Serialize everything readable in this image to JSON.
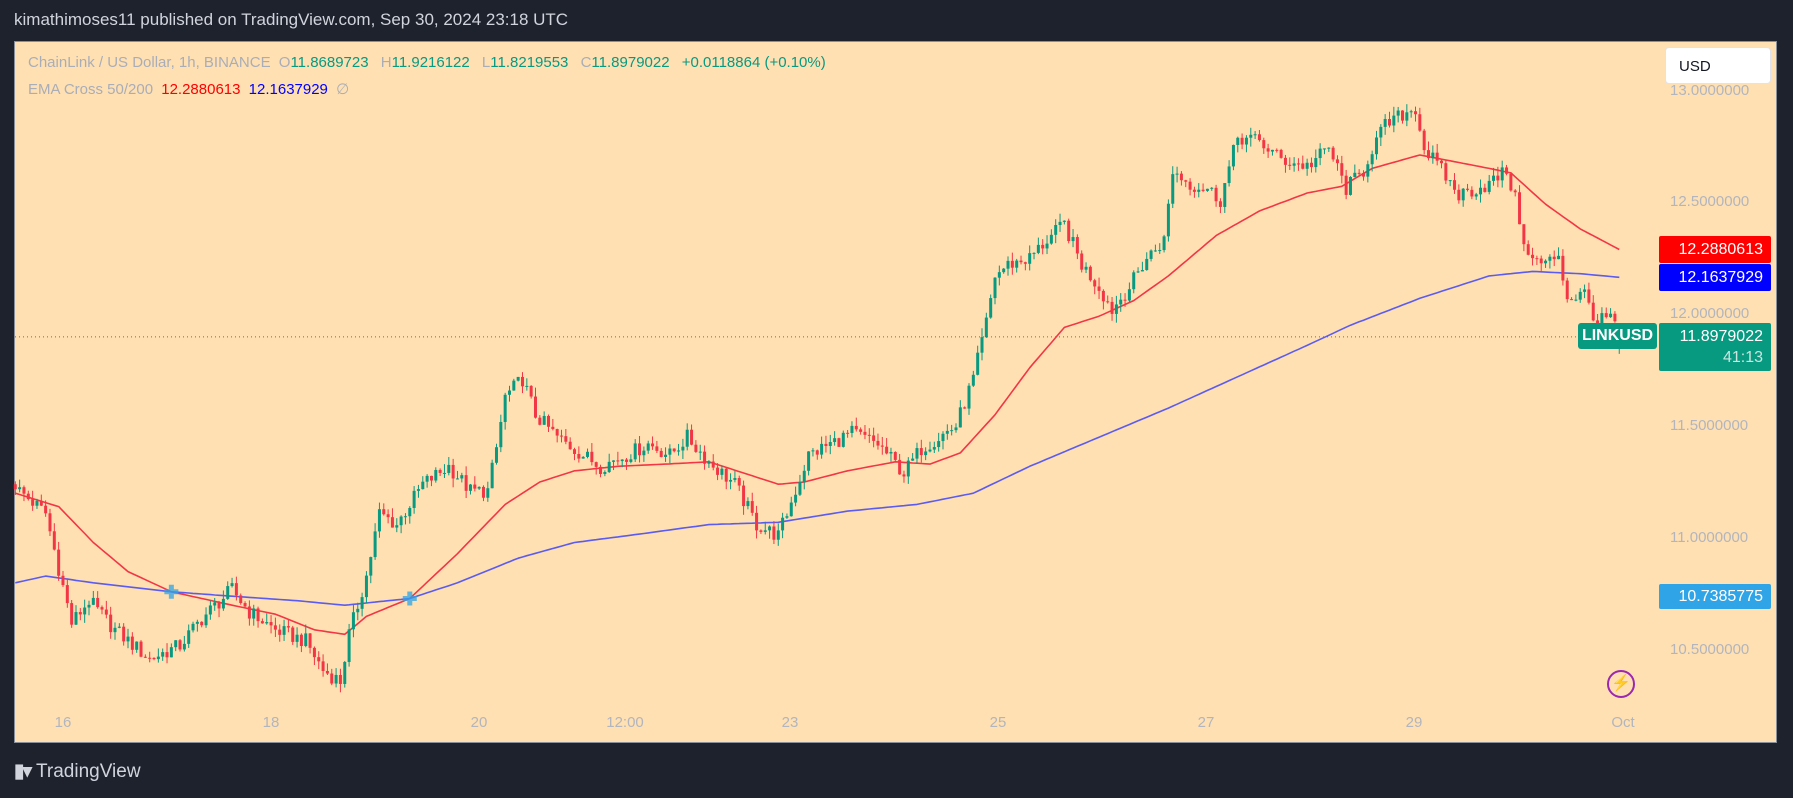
{
  "header": {
    "title": "kimathimoses11 published on TradingView.com, Sep 30, 2024 23:18 UTC"
  },
  "legend": {
    "symbol": "ChainLink / US Dollar, 1h, BINANCE",
    "o_label": "O",
    "o": "11.8689723",
    "h_label": "H",
    "h": "11.9216122",
    "l_label": "L",
    "l": "11.8219553",
    "c_label": "C",
    "c": "11.8979022",
    "change": "+0.0118864 (+0.10%)",
    "indicator": "EMA Cross 50/200",
    "ema50": "12.2880613",
    "ema200": "12.1637929",
    "ema_extra": "∅"
  },
  "currency_button": "USD",
  "footer": {
    "brand": "TradingView",
    "logo_mark": "17"
  },
  "icons": {
    "alert": "lightning-icon"
  },
  "colors": {
    "up": "#089981",
    "down": "#f23645",
    "ema50": "#ff0000",
    "ema200": "#0000ff",
    "cross": "#2fa4e7",
    "background": "#ffe0b2"
  },
  "price_labels": {
    "ema50": "12.2880613",
    "ema200": "12.1637929",
    "symbol_tag": "LINKUSD",
    "last": "11.8979022",
    "countdown": "41:13",
    "cross": "10.7385775"
  },
  "chart_data": {
    "type": "candlestick",
    "interval": "1h",
    "y_ticks": [
      "13.0000000",
      "12.5000000",
      "12.0000000",
      "11.5000000",
      "11.0000000",
      "10.5000000"
    ],
    "x_ticks": [
      "16",
      "18",
      "20",
      "12:00",
      "23",
      "25",
      "27",
      "29",
      "Oct"
    ],
    "ylim": [
      10.25,
      13.12
    ],
    "last_candle": {
      "o": 11.8689723,
      "h": 11.9216122,
      "l": 11.8219553,
      "c": 11.8979022
    },
    "close_path": [
      [
        "09-15 13:00",
        11.24
      ],
      [
        "09-15 14:00",
        11.21
      ],
      [
        "09-15 20:00",
        11.11
      ],
      [
        "09-16 02:00",
        10.62
      ],
      [
        "09-16 06:00",
        10.72
      ],
      [
        "09-16 12:00",
        10.59
      ],
      [
        "09-16 20:00",
        10.46
      ],
      [
        "09-17 03:00",
        10.52
      ],
      [
        "09-17 08:00",
        10.64
      ],
      [
        "09-17 15:00",
        10.77
      ],
      [
        "09-17 19:00",
        10.67
      ],
      [
        "09-18 01:00",
        10.59
      ],
      [
        "09-18 08:00",
        10.54
      ],
      [
        "09-18 12:00",
        10.41
      ],
      [
        "09-18 16:00",
        10.36
      ],
      [
        "09-18 18:00",
        10.57
      ],
      [
        "09-18 22:00",
        10.83
      ],
      [
        "09-19 01:00",
        11.11
      ],
      [
        "09-19 05:00",
        11.06
      ],
      [
        "09-19 11:00",
        11.24
      ],
      [
        "09-19 17:00",
        11.32
      ],
      [
        "09-19 22:00",
        11.21
      ],
      [
        "09-20 02:00",
        11.21
      ],
      [
        "09-20 04:00",
        11.4
      ],
      [
        "09-20 06:00",
        11.63
      ],
      [
        "09-20 10:00",
        11.71
      ],
      [
        "09-20 13:00",
        11.55
      ],
      [
        "09-20 18:00",
        11.45
      ],
      [
        "09-21 00:00",
        11.37
      ],
      [
        "09-21 04:00",
        11.32
      ],
      [
        "09-21 10:00",
        11.37
      ],
      [
        "09-21 15:00",
        11.42
      ],
      [
        "09-21 20:00",
        11.37
      ],
      [
        "09-22 00:00",
        11.45
      ],
      [
        "09-22 05:00",
        11.34
      ],
      [
        "09-22 11:00",
        11.24
      ],
      [
        "09-22 16:00",
        11.06
      ],
      [
        "09-22 21:00",
        11.01
      ],
      [
        "09-23 00:00",
        11.16
      ],
      [
        "09-23 04:00",
        11.37
      ],
      [
        "09-23 09:00",
        11.42
      ],
      [
        "09-23 14:00",
        11.47
      ],
      [
        "09-23 20:00",
        11.42
      ],
      [
        "09-24 02:00",
        11.29
      ],
      [
        "09-24 06:00",
        11.4
      ],
      [
        "09-24 10:00",
        11.45
      ],
      [
        "09-24 14:00",
        11.5
      ],
      [
        "09-24 18:00",
        11.71
      ],
      [
        "09-24 21:00",
        11.96
      ],
      [
        "09-24 23:00",
        12.17
      ],
      [
        "09-25 02:00",
        12.22
      ],
      [
        "09-25 07:00",
        12.25
      ],
      [
        "09-25 11:00",
        12.33
      ],
      [
        "09-25 15:00",
        12.4
      ],
      [
        "09-25 19:00",
        12.22
      ],
      [
        "09-25 23:00",
        12.12
      ],
      [
        "09-26 02:00",
        12.02
      ],
      [
        "09-26 06:00",
        12.12
      ],
      [
        "09-26 10:00",
        12.25
      ],
      [
        "09-26 14:00",
        12.33
      ],
      [
        "09-26 16:00",
        12.64
      ],
      [
        "09-26 20:00",
        12.58
      ],
      [
        "09-27 00:00",
        12.56
      ],
      [
        "09-27 03:00",
        12.51
      ],
      [
        "09-27 07:00",
        12.79
      ],
      [
        "09-27 12:00",
        12.77
      ],
      [
        "09-27 17:00",
        12.69
      ],
      [
        "09-27 23:00",
        12.66
      ],
      [
        "09-28 04:00",
        12.74
      ],
      [
        "09-28 08:00",
        12.56
      ],
      [
        "09-28 12:00",
        12.64
      ],
      [
        "09-28 14:00",
        12.74
      ],
      [
        "09-28 17:00",
        12.84
      ],
      [
        "09-28 21:00",
        12.89
      ],
      [
        "09-29 00:00",
        12.92
      ],
      [
        "09-29 02:00",
        12.74
      ],
      [
        "09-29 06:00",
        12.64
      ],
      [
        "09-29 10:00",
        12.53
      ],
      [
        "09-29 14:00",
        12.56
      ],
      [
        "09-29 17:00",
        12.58
      ],
      [
        "09-29 21:00",
        12.64
      ],
      [
        "09-29 23:00",
        12.51
      ],
      [
        "09-30 02:00",
        12.25
      ],
      [
        "09-30 06:00",
        12.22
      ],
      [
        "09-30 09:00",
        12.27
      ],
      [
        "09-30 11:00",
        12.07
      ],
      [
        "09-30 15:00",
        12.09
      ],
      [
        "09-30 18:00",
        11.96
      ],
      [
        "09-30 21:00",
        11.99
      ],
      [
        "09-30 23:00",
        11.8979022
      ]
    ],
    "series": [
      {
        "name": "EMA 50",
        "color": "#f23645",
        "points": [
          [
            "09-15 13:00",
            11.2
          ],
          [
            "09-15 23:00",
            11.14
          ],
          [
            "09-16 07:00",
            10.98
          ],
          [
            "09-16 15:00",
            10.85
          ],
          [
            "09-17 01:00",
            10.76
          ],
          [
            "09-17 15:00",
            10.7
          ],
          [
            "09-18 01:00",
            10.66
          ],
          [
            "09-18 10:00",
            10.59
          ],
          [
            "09-18 17:00",
            10.57
          ],
          [
            "09-18 22:00",
            10.65
          ],
          [
            "09-19 08:00",
            10.73
          ],
          [
            "09-19 19:00",
            10.93
          ],
          [
            "09-20 06:00",
            11.15
          ],
          [
            "09-20 14:00",
            11.25
          ],
          [
            "09-20 22:00",
            11.3
          ],
          [
            "09-21 08:00",
            11.32
          ],
          [
            "09-21 19:00",
            11.33
          ],
          [
            "09-22 05:00",
            11.34
          ],
          [
            "09-22 13:00",
            11.29
          ],
          [
            "09-22 21:00",
            11.24
          ],
          [
            "09-23 03:00",
            11.25
          ],
          [
            "09-23 13:00",
            11.3
          ],
          [
            "09-24 00:00",
            11.34
          ],
          [
            "09-24 08:00",
            11.33
          ],
          [
            "09-24 15:00",
            11.38
          ],
          [
            "09-24 23:00",
            11.55
          ],
          [
            "09-25 07:00",
            11.76
          ],
          [
            "09-25 15:00",
            11.94
          ],
          [
            "09-25 23:00",
            11.99
          ],
          [
            "09-26 07:00",
            12.06
          ],
          [
            "09-26 15:00",
            12.17
          ],
          [
            "09-27 02:00",
            12.35
          ],
          [
            "09-27 12:00",
            12.46
          ],
          [
            "09-27 23:00",
            12.54
          ],
          [
            "09-28 07:00",
            12.57
          ],
          [
            "09-28 14:00",
            12.65
          ],
          [
            "09-29 01:00",
            12.71
          ],
          [
            "09-29 09:00",
            12.68
          ],
          [
            "09-29 17:00",
            12.65
          ],
          [
            "09-29 22:00",
            12.63
          ],
          [
            "09-30 06:00",
            12.49
          ],
          [
            "09-30 14:00",
            12.38
          ],
          [
            "09-30 23:00",
            12.2880613
          ]
        ]
      },
      {
        "name": "EMA 200",
        "color": "#5b5bf0",
        "points": [
          [
            "09-15 13:00",
            10.8
          ],
          [
            "09-15 20:00",
            10.83
          ],
          [
            "09-16 07:00",
            10.8
          ],
          [
            "09-17 01:00",
            10.76
          ],
          [
            "09-17 15:00",
            10.74
          ],
          [
            "09-18 06:00",
            10.72
          ],
          [
            "09-18 17:00",
            10.7
          ],
          [
            "09-19 08:00",
            10.73
          ],
          [
            "09-19 19:00",
            10.8
          ],
          [
            "09-20 09:00",
            10.91
          ],
          [
            "09-20 22:00",
            10.98
          ],
          [
            "09-21 14:00",
            11.02
          ],
          [
            "09-22 05:00",
            11.06
          ],
          [
            "09-22 21:00",
            11.07
          ],
          [
            "09-23 13:00",
            11.12
          ],
          [
            "09-24 05:00",
            11.15
          ],
          [
            "09-24 18:00",
            11.2
          ],
          [
            "09-25 07:00",
            11.32
          ],
          [
            "09-25 23:00",
            11.45
          ],
          [
            "09-26 15:00",
            11.58
          ],
          [
            "09-27 07:00",
            11.72
          ],
          [
            "09-27 23:00",
            11.86
          ],
          [
            "09-28 09:00",
            11.95
          ],
          [
            "09-29 01:00",
            12.07
          ],
          [
            "09-29 17:00",
            12.17
          ],
          [
            "09-30 03:00",
            12.19
          ],
          [
            "09-30 14:00",
            12.18
          ],
          [
            "09-30 23:00",
            12.1637929
          ]
        ]
      }
    ],
    "crosses": [
      [
        "09-17 01:00",
        10.76
      ],
      [
        "09-19 08:00",
        10.73
      ]
    ]
  }
}
